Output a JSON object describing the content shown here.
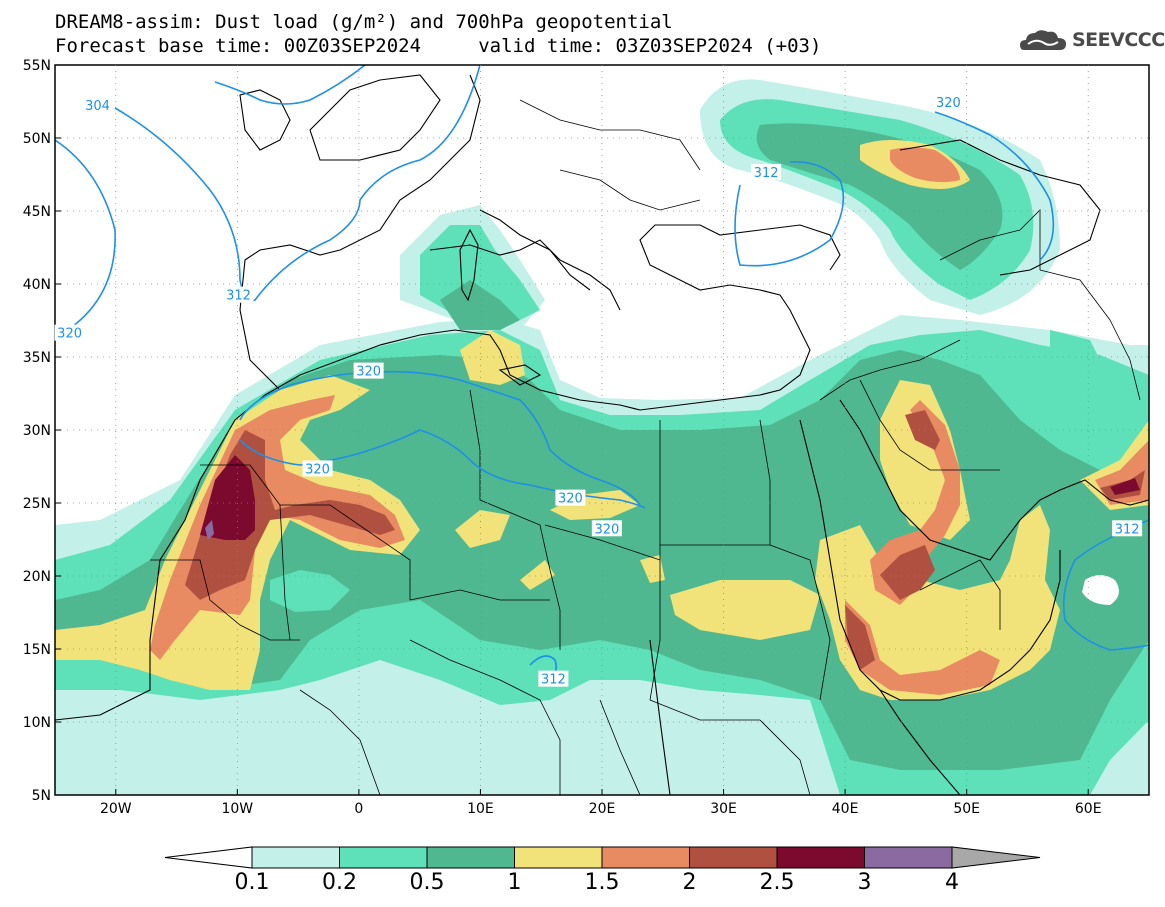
{
  "header": {
    "title_line1": "DREAM8-assim: Dust load (g/m²) and 700hPa geopotential",
    "title_line2": "Forecast base time: 00Z03SEP2024     valid time: 03Z03SEP2024 (+03)",
    "logo_text": "SEEVCCC"
  },
  "map": {
    "lon_range": [
      -25,
      65
    ],
    "lat_range": [
      5,
      55
    ],
    "lat_ticks": [
      "55N",
      "50N",
      "45N",
      "40N",
      "35N",
      "30N",
      "25N",
      "20N",
      "15N",
      "10N",
      "5N"
    ],
    "lon_ticks": [
      "20W",
      "10W",
      "0",
      "10E",
      "20E",
      "30E",
      "40E",
      "50E",
      "60E"
    ],
    "contour_color": "#1e90e6",
    "contour_labels": [
      {
        "text": "304",
        "lon": -21.5,
        "lat": 52.2
      },
      {
        "text": "312",
        "lon": -9.9,
        "lat": 39.2
      },
      {
        "text": "320",
        "lon": -23.8,
        "lat": 36.6
      },
      {
        "text": "320",
        "lon": 0.8,
        "lat": 34.0
      },
      {
        "text": "320",
        "lon": -3.4,
        "lat": 27.3
      },
      {
        "text": "320",
        "lon": 17.4,
        "lat": 25.3
      },
      {
        "text": "320",
        "lon": 20.4,
        "lat": 23.2
      },
      {
        "text": "312",
        "lon": 33.5,
        "lat": 47.6
      },
      {
        "text": "320",
        "lon": 48.5,
        "lat": 52.4
      },
      {
        "text": "312",
        "lon": 63.2,
        "lat": 23.2
      },
      {
        "text": "312",
        "lon": 16.0,
        "lat": 12.9
      }
    ]
  },
  "colorbar": {
    "levels": [
      "0.1",
      "0.2",
      "0.5",
      "1",
      "1.5",
      "2",
      "2.5",
      "3",
      "4"
    ],
    "colors": [
      "#c4f0ea",
      "#5ee0b8",
      "#50b890",
      "#f2e27a",
      "#e88a62",
      "#b05040",
      "#7c0a2e",
      "#8a6aa0"
    ],
    "under_color": "#ffffff",
    "over_color": "#a8a8a8"
  },
  "legend_colors": {
    "c1": "#c4f0ea",
    "c2": "#5ee0b8",
    "c3": "#50b890",
    "c4": "#f2e27a",
    "c5": "#e88a62",
    "c6": "#b05040",
    "c7": "#7c0a2e",
    "c8": "#8a6aa0"
  }
}
